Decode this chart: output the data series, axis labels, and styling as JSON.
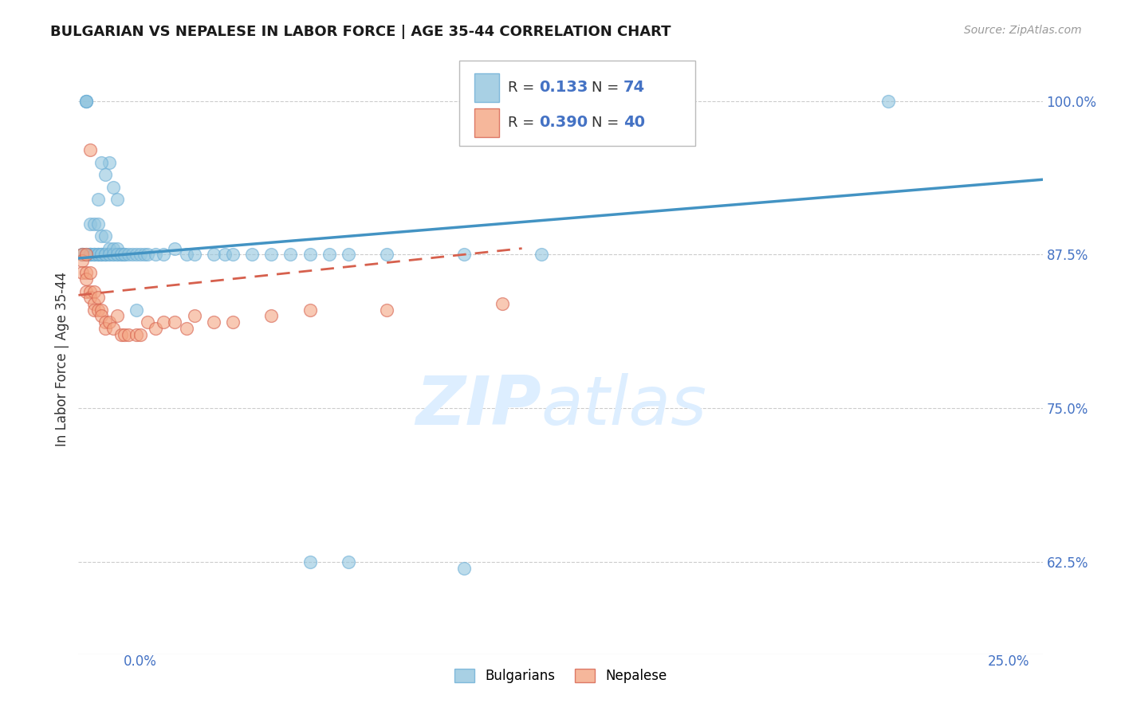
{
  "title": "BULGARIAN VS NEPALESE IN LABOR FORCE | AGE 35-44 CORRELATION CHART",
  "source": "Source: ZipAtlas.com",
  "ylabel": "In Labor Force | Age 35-44",
  "xlim": [
    0.0,
    0.25
  ],
  "ylim": [
    0.55,
    1.03
  ],
  "xticks": [
    0.0,
    0.05,
    0.1,
    0.15,
    0.2,
    0.25
  ],
  "xticklabels": [
    "0.0%",
    "",
    "",
    "",
    "",
    "25.0%"
  ],
  "yticks": [
    0.625,
    0.75,
    0.875,
    1.0
  ],
  "yticklabels": [
    "62.5%",
    "75.0%",
    "87.5%",
    "100.0%"
  ],
  "bulgarian_R": 0.133,
  "bulgarian_N": 74,
  "nepalese_R": 0.39,
  "nepalese_N": 40,
  "blue_color": "#92c5de",
  "blue_edge_color": "#6baed6",
  "blue_line_color": "#4393c3",
  "pink_color": "#f4a582",
  "pink_edge_color": "#d6604d",
  "pink_line_color": "#d6604d",
  "watermark_zip": "ZIP",
  "watermark_atlas": "atlas",
  "watermark_color": "#ddeeff",
  "bg_color": "#ffffff",
  "grid_color": "#cccccc",
  "bulgarian_x": [
    0.001,
    0.001,
    0.002,
    0.002,
    0.002,
    0.002,
    0.003,
    0.003,
    0.003,
    0.003,
    0.003,
    0.004,
    0.004,
    0.004,
    0.004,
    0.005,
    0.005,
    0.005,
    0.005,
    0.005,
    0.006,
    0.006,
    0.006,
    0.006,
    0.007,
    0.007,
    0.007,
    0.007,
    0.008,
    0.008,
    0.008,
    0.009,
    0.009,
    0.009,
    0.01,
    0.01,
    0.01,
    0.011,
    0.011,
    0.012,
    0.012,
    0.013,
    0.014,
    0.015,
    0.016,
    0.017,
    0.018,
    0.02,
    0.022,
    0.025,
    0.028,
    0.03,
    0.035,
    0.038,
    0.04,
    0.045,
    0.05,
    0.055,
    0.06,
    0.065,
    0.07,
    0.08,
    0.1,
    0.12,
    0.015,
    0.008,
    0.006,
    0.007,
    0.009,
    0.01,
    0.06,
    0.07,
    0.1,
    0.21
  ],
  "bulgarian_y": [
    0.875,
    0.875,
    1.0,
    1.0,
    1.0,
    0.875,
    0.875,
    0.875,
    0.875,
    0.9,
    0.875,
    0.875,
    0.875,
    0.9,
    0.875,
    0.9,
    0.92,
    0.875,
    0.875,
    0.875,
    0.875,
    0.875,
    0.89,
    0.875,
    0.875,
    0.89,
    0.875,
    0.875,
    0.88,
    0.875,
    0.875,
    0.875,
    0.88,
    0.875,
    0.875,
    0.88,
    0.875,
    0.875,
    0.875,
    0.875,
    0.875,
    0.875,
    0.875,
    0.875,
    0.875,
    0.875,
    0.875,
    0.875,
    0.875,
    0.88,
    0.875,
    0.875,
    0.875,
    0.875,
    0.875,
    0.875,
    0.875,
    0.875,
    0.875,
    0.875,
    0.875,
    0.875,
    0.875,
    0.875,
    0.83,
    0.95,
    0.95,
    0.94,
    0.93,
    0.92,
    0.625,
    0.625,
    0.62,
    1.0
  ],
  "nepalese_x": [
    0.001,
    0.001,
    0.001,
    0.002,
    0.002,
    0.002,
    0.002,
    0.003,
    0.003,
    0.003,
    0.004,
    0.004,
    0.004,
    0.005,
    0.005,
    0.006,
    0.006,
    0.007,
    0.007,
    0.008,
    0.009,
    0.01,
    0.011,
    0.012,
    0.013,
    0.015,
    0.016,
    0.018,
    0.02,
    0.022,
    0.025,
    0.028,
    0.03,
    0.035,
    0.04,
    0.05,
    0.06,
    0.08,
    0.11,
    0.003
  ],
  "nepalese_y": [
    0.875,
    0.87,
    0.86,
    0.875,
    0.86,
    0.855,
    0.845,
    0.86,
    0.845,
    0.84,
    0.845,
    0.835,
    0.83,
    0.84,
    0.83,
    0.83,
    0.825,
    0.82,
    0.815,
    0.82,
    0.815,
    0.825,
    0.81,
    0.81,
    0.81,
    0.81,
    0.81,
    0.82,
    0.815,
    0.82,
    0.82,
    0.815,
    0.825,
    0.82,
    0.82,
    0.825,
    0.83,
    0.83,
    0.835,
    0.96
  ],
  "blue_trend_x0": 0.0,
  "blue_trend_x1": 0.25,
  "blue_trend_y0": 0.872,
  "blue_trend_y1": 0.936,
  "pink_trend_x0": 0.0,
  "pink_trend_x1": 0.115,
  "pink_trend_y0": 0.842,
  "pink_trend_y1": 0.88
}
